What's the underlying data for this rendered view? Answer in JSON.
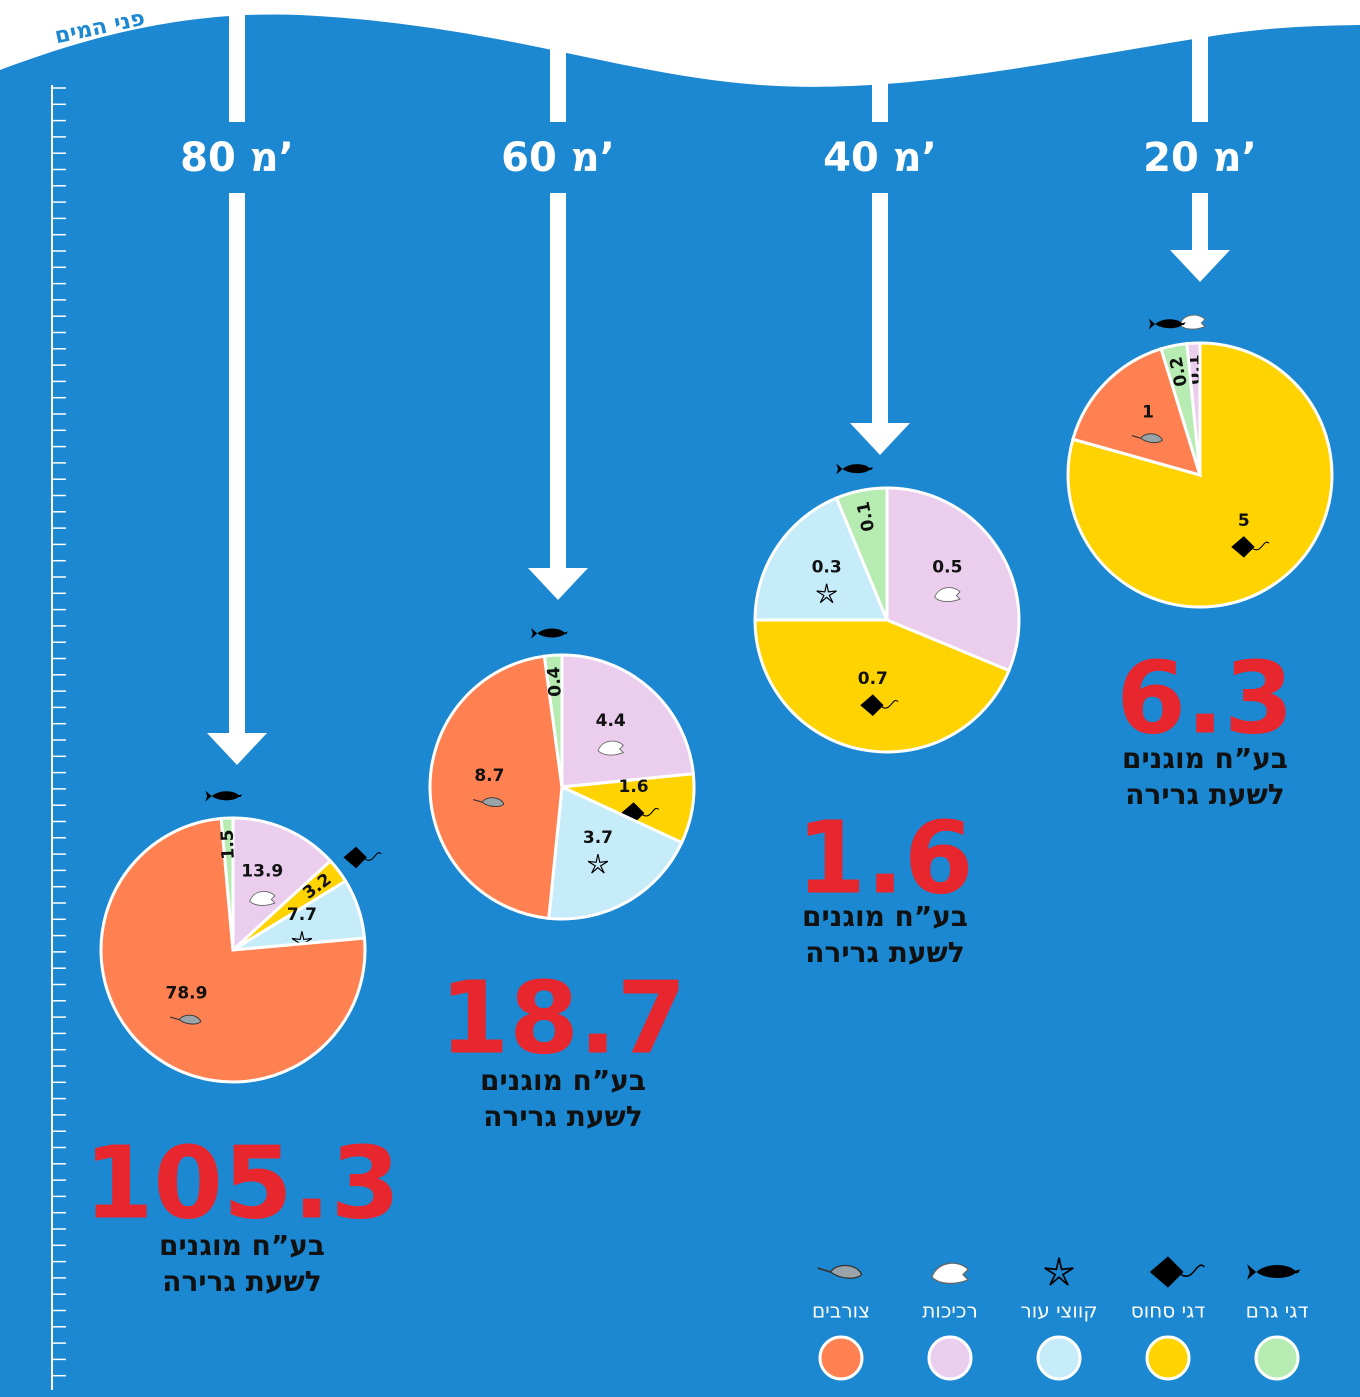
{
  "surface_label": "פני המים",
  "legend": [
    {
      "name": "דגי גרם",
      "color": "#b6ecb1"
    },
    {
      "name": "דגי סחוס",
      "color": "#ffd300"
    },
    {
      "name": "קווצי עור",
      "color": "#c6ecfa"
    },
    {
      "name": "רכיכות",
      "color": "#ebcdee"
    },
    {
      "name": "צורבים",
      "color": "#ff8152"
    }
  ],
  "total_caption": [
    "בע”ח מוגנים",
    "לשעת גרירה"
  ],
  "chart_data": [
    {
      "type": "pie",
      "title": "20 מ’",
      "values": [
        0.2,
        5,
        null,
        0.1,
        1
      ],
      "total": 6.3
    },
    {
      "type": "pie",
      "title": "40 מ’",
      "values": [
        0.1,
        0.7,
        0.3,
        0.5,
        null
      ],
      "total": 1.6
    },
    {
      "type": "pie",
      "title": "60 מ’",
      "values": [
        0.4,
        1.6,
        3.7,
        4.4,
        8.7
      ],
      "total": 18.7
    },
    {
      "type": "pie",
      "title": "80 מ’",
      "values": [
        1.5,
        3.2,
        7.7,
        13.9,
        78.9
      ],
      "total": 105.3
    }
  ]
}
